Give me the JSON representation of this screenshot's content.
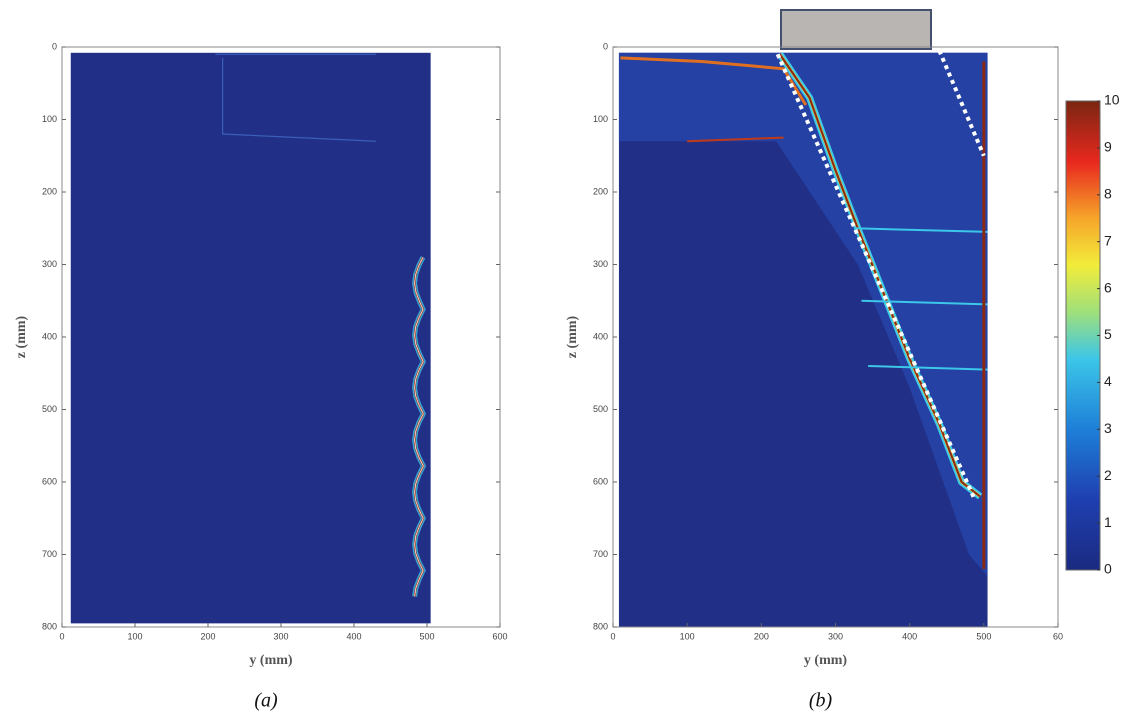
{
  "chart_data": [
    {
      "type": "heatmap",
      "xlabel": "y (mm)",
      "ylabel": "z (mm)",
      "caption": "(a)",
      "xlim": [
        0,
        600
      ],
      "ylim": [
        800,
        0
      ],
      "xticks": [
        0,
        100,
        200,
        300,
        400,
        500,
        600
      ],
      "yticks": [
        0,
        100,
        200,
        300,
        400,
        500,
        600,
        700,
        800
      ]
    },
    {
      "type": "heatmap",
      "xlabel": "y (mm)",
      "ylabel": "z (mm)",
      "caption": "(b)",
      "xlim": [
        0,
        600
      ],
      "ylim": [
        800,
        0
      ],
      "xticks": [
        0,
        100,
        200,
        300,
        400,
        500,
        {
          "value": 600,
          "label": "60"
        }
      ],
      "yticks": [
        0,
        100,
        200,
        300,
        400,
        500,
        600,
        700,
        800
      ],
      "colorbar": {
        "lim": [
          0,
          10
        ],
        "ticks": [
          0,
          1,
          2,
          3,
          4,
          5,
          6,
          7,
          8,
          9,
          10
        ]
      }
    }
  ]
}
